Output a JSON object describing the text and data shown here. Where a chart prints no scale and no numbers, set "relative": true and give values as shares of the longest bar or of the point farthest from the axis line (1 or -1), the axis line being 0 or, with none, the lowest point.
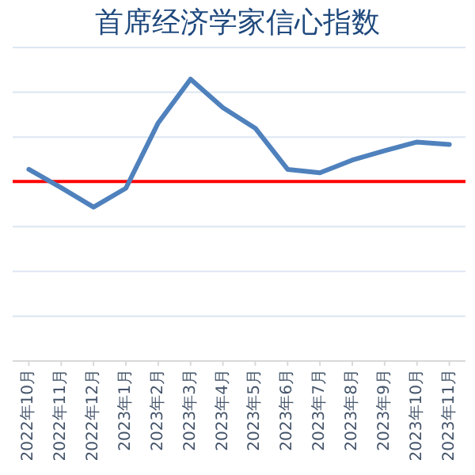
{
  "chart_data": {
    "type": "line",
    "title": "首席经济学家信心指数",
    "categories": [
      "2022年10月",
      "2022年11月",
      "2022年12月",
      "2023年1月",
      "2023年2月",
      "2023年3月",
      "2023年4月",
      "2023年5月",
      "2023年6月",
      "2023年7月",
      "2023年8月",
      "2023年9月",
      "2023年10月",
      "2023年11月"
    ],
    "relative": true,
    "series": [
      {
        "color": "#4f81bd",
        "values": [
          0.68,
          0.615,
          0.546,
          0.613,
          0.845,
          1,
          0.899,
          0.826,
          0.68,
          0.668,
          0.713,
          0.746,
          0.777,
          0.768
        ]
      }
    ],
    "ref_lines": [
      {
        "axis": "y",
        "value": 0.637,
        "color": "#ff0000"
      }
    ],
    "grid": "y",
    "marker": "none",
    "line_style": "solid"
  }
}
